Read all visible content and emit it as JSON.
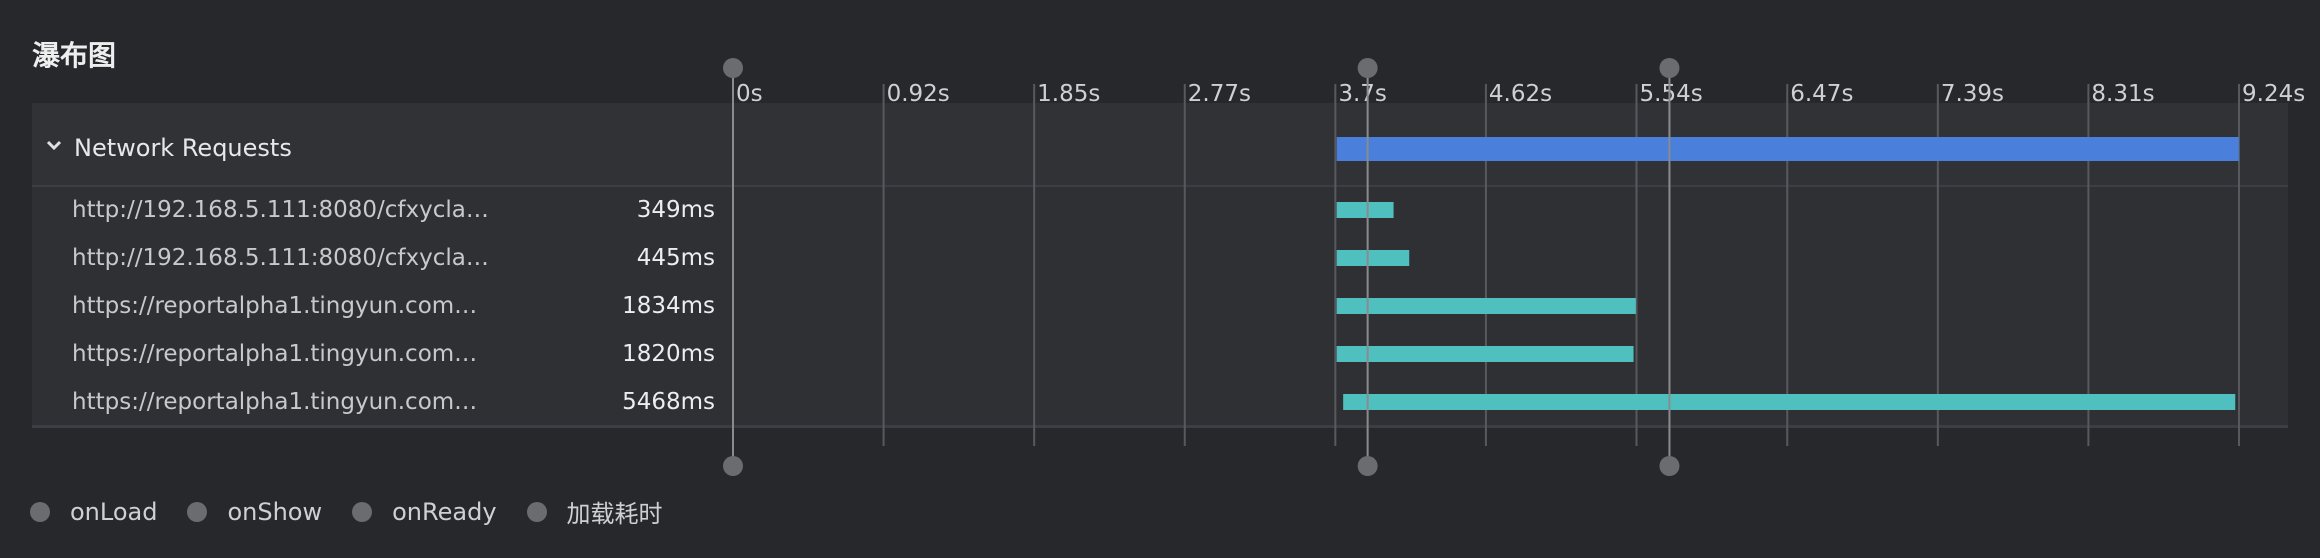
{
  "title": "瀑布图",
  "group": {
    "label": "Network Requests"
  },
  "axis": {
    "ticks": [
      "0s",
      "0.92s",
      "1.85s",
      "2.77s",
      "3.7s",
      "4.62s",
      "5.54s",
      "6.47s",
      "7.39s",
      "8.31s",
      "9.24s"
    ],
    "tick_values": [
      0,
      0.923,
      1.846,
      2.769,
      3.692,
      4.615,
      5.538,
      6.462,
      7.385,
      8.308,
      9.231
    ],
    "max": 9.231
  },
  "chart_data": {
    "type": "bar",
    "orientation": "horizontal-gantt",
    "categories": [
      "Network Requests",
      "http://192.168.5.111:8080/cfxycla…",
      "http://192.168.5.111:8080/cfxycla…",
      "https://reportalpha1.tingyun.com…",
      "https://reportalpha1.tingyun.com…",
      "https://reportalpha1.tingyun.com…"
    ],
    "series": [
      {
        "starts": [
          3.7,
          3.7,
          3.7,
          3.7,
          3.7,
          3.74
        ],
        "durations": [
          5.53,
          0.349,
          0.445,
          1.834,
          1.82,
          5.468
        ]
      }
    ],
    "xlim": [
      0,
      9.231
    ],
    "markers": [
      {
        "name": "onLoad",
        "value": 0
      },
      {
        "name": "onShow",
        "value": 3.89
      },
      {
        "name": "onReady",
        "value": 5.74
      }
    ]
  },
  "requests": [
    {
      "url": "http://192.168.5.111:8080/cfxycla…",
      "duration": "349ms"
    },
    {
      "url": "http://192.168.5.111:8080/cfxycla…",
      "duration": "445ms"
    },
    {
      "url": "https://reportalpha1.tingyun.com…",
      "duration": "1834ms"
    },
    {
      "url": "https://reportalpha1.tingyun.com…",
      "duration": "1820ms"
    },
    {
      "url": "https://reportalpha1.tingyun.com…",
      "duration": "5468ms"
    }
  ],
  "legend": [
    {
      "label": "onLoad"
    },
    {
      "label": "onShow"
    },
    {
      "label": "onReady"
    },
    {
      "label": "加载耗时"
    }
  ],
  "colors": {
    "group_bar": "#4a7fdc",
    "request_bar": "#4fbfbf",
    "marker": "#6b6c70",
    "gridline": "#58595e"
  }
}
